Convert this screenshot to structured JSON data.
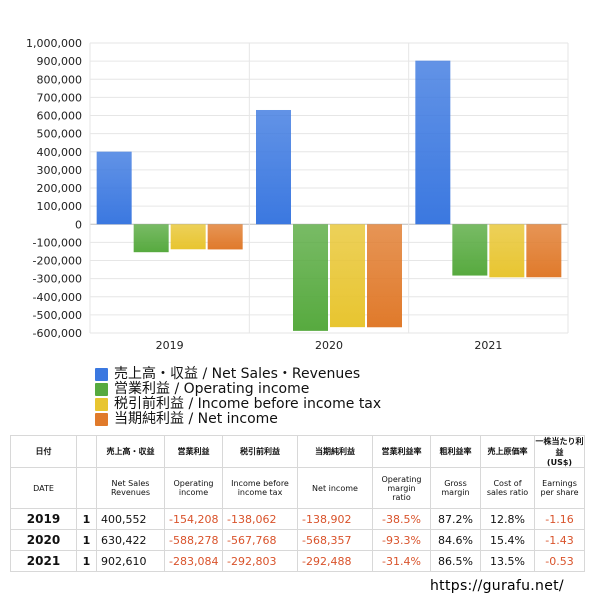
{
  "chart_data": {
    "type": "bar",
    "categories": [
      "2019",
      "2020",
      "2021"
    ],
    "series": [
      {
        "name": "売上高・収益 / Net Sales・Revenues",
        "values": [
          400552,
          630422,
          902610
        ]
      },
      {
        "name": "営業利益 / Operating income",
        "values": [
          -154208,
          -588278,
          -283084
        ]
      },
      {
        "name": "税引前利益 / Income before income tax",
        "values": [
          -138062,
          -567768,
          -292803
        ]
      },
      {
        "name": "当期純利益 / Net income",
        "values": [
          -138902,
          -568357,
          -292488
        ]
      }
    ],
    "ylim": [
      -600000,
      1000000
    ],
    "yticks": [
      "1,000,000",
      "900,000",
      "800,000",
      "700,000",
      "600,000",
      "500,000",
      "400,000",
      "300,000",
      "200,000",
      "100,000",
      "0",
      "-100,000",
      "-200,000",
      "-300,000",
      "-400,000",
      "-500,000",
      "-600,000"
    ],
    "colors": [
      "#3b78e0",
      "#57aa3f",
      "#e8c530",
      "#e07a2b"
    ],
    "grid": true,
    "legend": "bottom-left"
  },
  "table": {
    "header_jp": [
      "日付",
      "",
      "売上高・収益",
      "営業利益",
      "税引前利益",
      "当期純利益",
      "営業利益率",
      "粗利益率",
      "売上原価率",
      "一株当たり利益\n(US$)"
    ],
    "header_en": [
      "DATE",
      "",
      "Net Sales\nRevenues",
      "Operating\nincome",
      "Income before\nincome tax",
      "Net income",
      "Operating\nmargin\nratio",
      "Gross\nmargin",
      "Cost of\nsales ratio",
      "Earnings\nper share"
    ],
    "rows": [
      [
        "2019",
        "1",
        "400,552",
        "-154,208",
        "-138,062",
        "-138,902",
        "-38.5%",
        "87.2%",
        "12.8%",
        "-1.16"
      ],
      [
        "2020",
        "1",
        "630,422",
        "-588,278",
        "-567,768",
        "-568,357",
        "-93.3%",
        "84.6%",
        "15.4%",
        "-1.43"
      ],
      [
        "2021",
        "1",
        "902,610",
        "-283,084",
        "-292,803",
        "-292,488",
        "-31.4%",
        "86.5%",
        "13.5%",
        "-0.53"
      ]
    ]
  },
  "footer": "https://gurafu.net/"
}
